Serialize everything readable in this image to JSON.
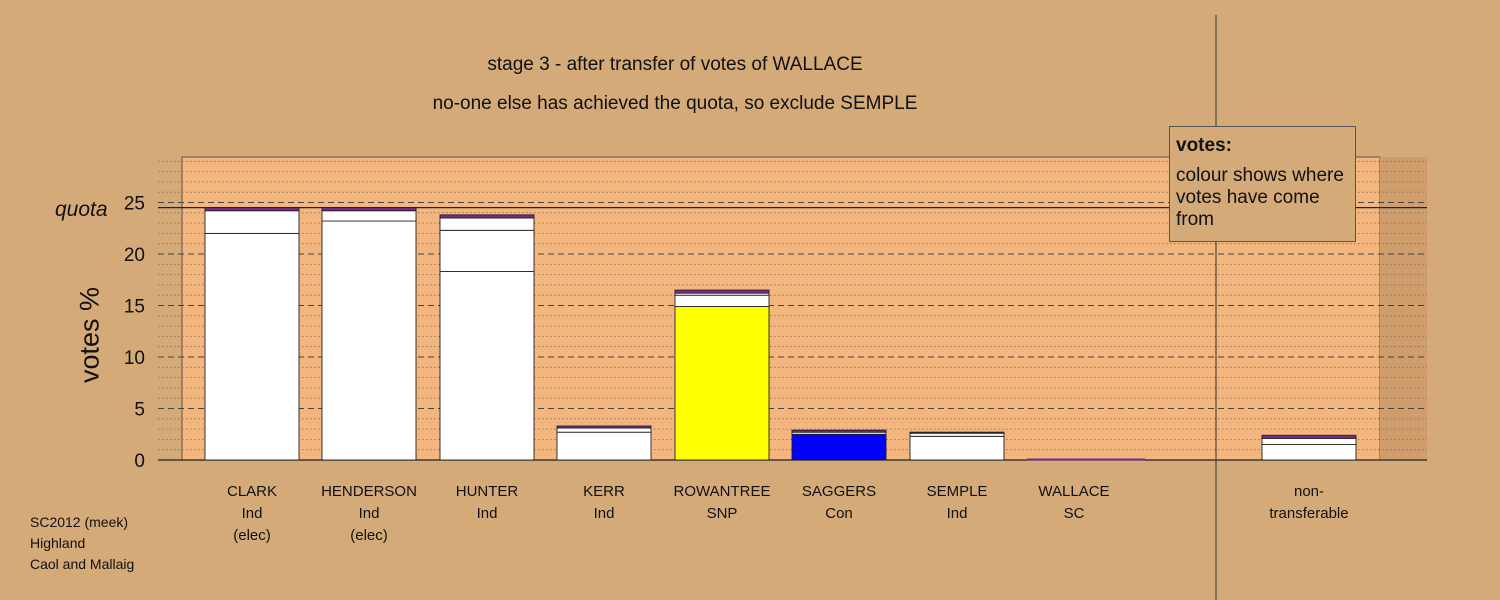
{
  "titles": {
    "line1": "stage 3 - after transfer of votes of WALLACE",
    "line2": "no-one else has achieved the quota, so exclude SEMPLE"
  },
  "footer": {
    "line1": "SC2012 (meek)",
    "line2": "Highland",
    "line3": "Caol and Mallaig"
  },
  "legend": {
    "title": "votes:",
    "text": "colour shows where votes have come from"
  },
  "colors": {
    "background": "#d4aa78",
    "plot_background": "#f2b67e",
    "Ind": "#ffffff",
    "SNP": "#ffff00",
    "Con": "#0000ff",
    "SC": "#7b2a8c",
    "bar_outline": "#222222"
  },
  "chart_data": {
    "type": "bar",
    "stacked": true,
    "ylabel": "votes %",
    "quota_label": "quota",
    "quota": 24.5,
    "ylim": [
      0,
      30
    ],
    "yticks": [
      0,
      5,
      10,
      15,
      20,
      25
    ],
    "grid": true,
    "bars": [
      {
        "name": "CLARK",
        "party": "Ind",
        "note": "(elec)",
        "segments": [
          {
            "from": "Ind",
            "value": 22.0
          },
          {
            "from": "Ind",
            "value": 2.2
          },
          {
            "from": "SC",
            "value": 0.3
          }
        ]
      },
      {
        "name": "HENDERSON",
        "party": "Ind",
        "note": "(elec)",
        "segments": [
          {
            "from": "Ind",
            "value": 23.2
          },
          {
            "from": "Ind",
            "value": 1.0
          },
          {
            "from": "SC",
            "value": 0.3
          }
        ]
      },
      {
        "name": "HUNTER",
        "party": "Ind",
        "note": "",
        "segments": [
          {
            "from": "Ind",
            "value": 18.3
          },
          {
            "from": "Ind",
            "value": 4.0
          },
          {
            "from": "Ind",
            "value": 1.2
          },
          {
            "from": "SC",
            "value": 0.3
          }
        ]
      },
      {
        "name": "KERR",
        "party": "Ind",
        "note": "",
        "segments": [
          {
            "from": "Ind",
            "value": 2.7
          },
          {
            "from": "Ind",
            "value": 0.4
          },
          {
            "from": "SC",
            "value": 0.2
          }
        ]
      },
      {
        "name": "ROWANTREE",
        "party": "SNP",
        "note": "",
        "segments": [
          {
            "from": "SNP",
            "value": 14.9
          },
          {
            "from": "Ind",
            "value": 1.1
          },
          {
            "from": "Ind",
            "value": 0.2
          },
          {
            "from": "SC",
            "value": 0.3
          }
        ]
      },
      {
        "name": "SAGGERS",
        "party": "Con",
        "note": "",
        "segments": [
          {
            "from": "Con",
            "value": 2.5
          },
          {
            "from": "Ind",
            "value": 0.2
          },
          {
            "from": "SC",
            "value": 0.2
          }
        ]
      },
      {
        "name": "SEMPLE",
        "party": "Ind",
        "note": "",
        "segments": [
          {
            "from": "Ind",
            "value": 2.3
          },
          {
            "from": "Ind",
            "value": 0.3
          },
          {
            "from": "SC",
            "value": 0.1
          }
        ]
      },
      {
        "name": "WALLACE",
        "party": "SC",
        "note": "",
        "segments": []
      },
      {
        "name": "non-",
        "party": "transferable",
        "note": "",
        "segments": [
          {
            "from": "Ind",
            "value": 1.5
          },
          {
            "from": "Ind",
            "value": 0.6
          },
          {
            "from": "SC",
            "value": 0.3
          }
        ]
      }
    ]
  }
}
